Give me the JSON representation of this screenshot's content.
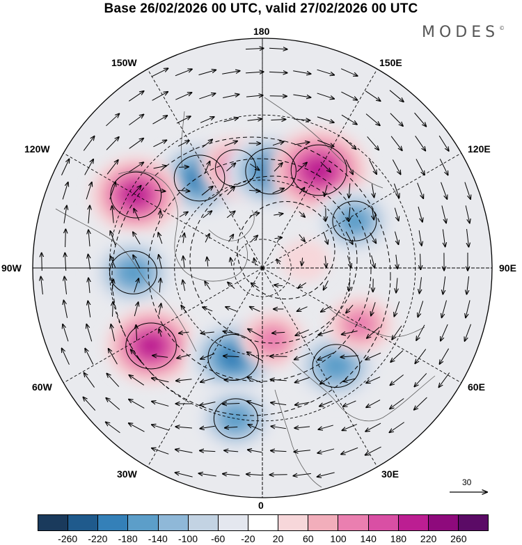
{
  "title": "Base 26/02/2026 00 UTC, valid 27/02/2026 00 UTC",
  "brand": {
    "name": "MODES",
    "mark": "©"
  },
  "map": {
    "projection": "north-polar-stereographic",
    "longitude_labels": [
      "180",
      "150E",
      "120E",
      "90E",
      "60E",
      "30E",
      "0",
      "30W",
      "60W",
      "90W",
      "120W",
      "150W"
    ],
    "anomaly_centers": [
      {
        "lon": -145,
        "lat": 53,
        "value": -200
      },
      {
        "lon": -165,
        "lat": 55,
        "value": 140
      },
      {
        "lon": 175,
        "lat": 57,
        "value": -200
      },
      {
        "lon": 150,
        "lat": 52,
        "value": 230
      },
      {
        "lon": 117,
        "lat": 55,
        "value": -160
      },
      {
        "lon": -120,
        "lat": 42,
        "value": 200
      },
      {
        "lon": -88,
        "lat": 47,
        "value": -180
      },
      {
        "lon": -55,
        "lat": 45,
        "value": 200
      },
      {
        "lon": -18,
        "lat": 58,
        "value": -200
      },
      {
        "lon": -10,
        "lat": 40,
        "value": -160
      },
      {
        "lon": 8,
        "lat": 65,
        "value": 120
      },
      {
        "lon": 37,
        "lat": 49,
        "value": -180
      },
      {
        "lon": 60,
        "lat": 52,
        "value": 120
      },
      {
        "lon": 100,
        "lat": 75,
        "value": 60
      }
    ]
  },
  "vector_reference": {
    "value": "30"
  },
  "colorbar": {
    "colors": [
      "#1a3a5c",
      "#1f5a8c",
      "#3480b8",
      "#5c9ec9",
      "#8fb8d8",
      "#c3d3e3",
      "#e4e7ef",
      "#ffffff",
      "#f7d7da",
      "#f2aebb",
      "#ea7fb0",
      "#d94fa4",
      "#bc1e92",
      "#8e0a7c",
      "#5b0b66"
    ],
    "ticks": [
      "-260",
      "-220",
      "-180",
      "-140",
      "-100",
      "-60",
      "-20",
      "20",
      "60",
      "100",
      "140",
      "180",
      "220",
      "260"
    ]
  }
}
